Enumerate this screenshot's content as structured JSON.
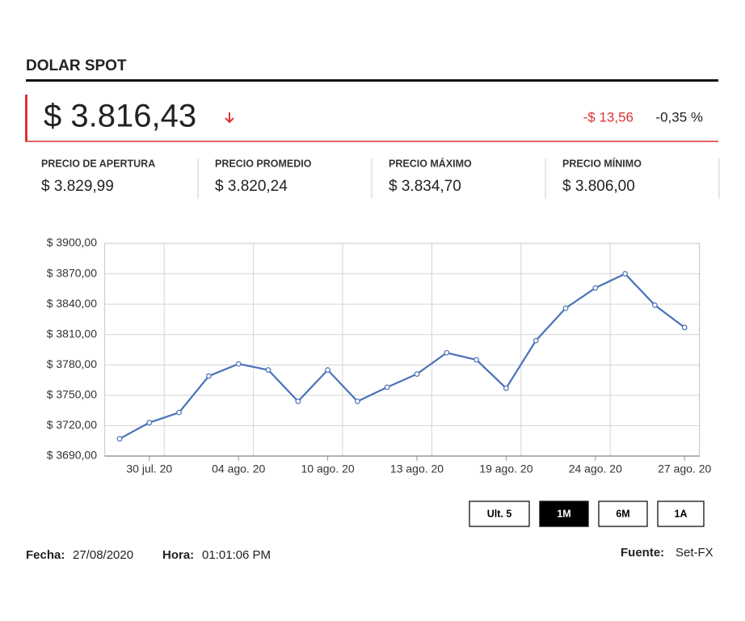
{
  "header": {
    "title": "DOLAR SPOT",
    "price": "$ 3.816,43",
    "change": "-$ 13,56",
    "change_pct": "-0,35 %"
  },
  "stats": [
    {
      "label": "PRECIO DE APERTURA",
      "value": "$ 3.829,99"
    },
    {
      "label": "PRECIO PROMEDIO",
      "value": "$ 3.820,24"
    },
    {
      "label": "PRECIO MÁXIMO",
      "value": "$ 3.834,70"
    },
    {
      "label": "PRECIO MÍNIMO",
      "value": "$ 3.806,00"
    }
  ],
  "chart_data": {
    "type": "line",
    "categories": [
      null,
      "30 jul. 20",
      null,
      null,
      "04 ago. 20",
      null,
      null,
      "10 ago. 20",
      null,
      null,
      "13 ago. 20",
      null,
      null,
      "19 ago. 20",
      null,
      null,
      "24 ago. 20",
      null,
      null,
      "27 ago. 20"
    ],
    "series": [
      {
        "color": "#4a72b8",
        "values": [
          3707,
          3723,
          3733,
          3769,
          3781,
          3775,
          3744,
          3775,
          3744,
          3758,
          3771,
          3792,
          3785,
          3757,
          3804,
          3836,
          3856,
          3870,
          3839,
          3817
        ]
      }
    ],
    "ylim": [
      3690,
      3900
    ],
    "yticks": [
      {
        "value": 3690,
        "label": "$ 3690,00"
      },
      {
        "value": 3720,
        "label": "$ 3720,00"
      },
      {
        "value": 3750,
        "label": "$ 3750,00"
      },
      {
        "value": 3780,
        "label": "$ 3780,00"
      },
      {
        "value": 3810,
        "label": "$ 3810,00"
      },
      {
        "value": 3840,
        "label": "$ 3840,00"
      },
      {
        "value": 3870,
        "label": "$ 3870,00"
      },
      {
        "value": 3900,
        "label": "$ 3900,00"
      }
    ],
    "grid": true
  },
  "buttons": [
    {
      "label": "Ult. 5"
    },
    {
      "label": "1M",
      "active": true
    },
    {
      "label": "6M"
    },
    {
      "label": "1A"
    }
  ],
  "footer": {
    "date_label": "Fecha:",
    "date": "27/08/2020",
    "time_label": "Hora:",
    "time": "01:01:06 PM",
    "source_label": "Fuente:",
    "source": "Set-FX"
  }
}
